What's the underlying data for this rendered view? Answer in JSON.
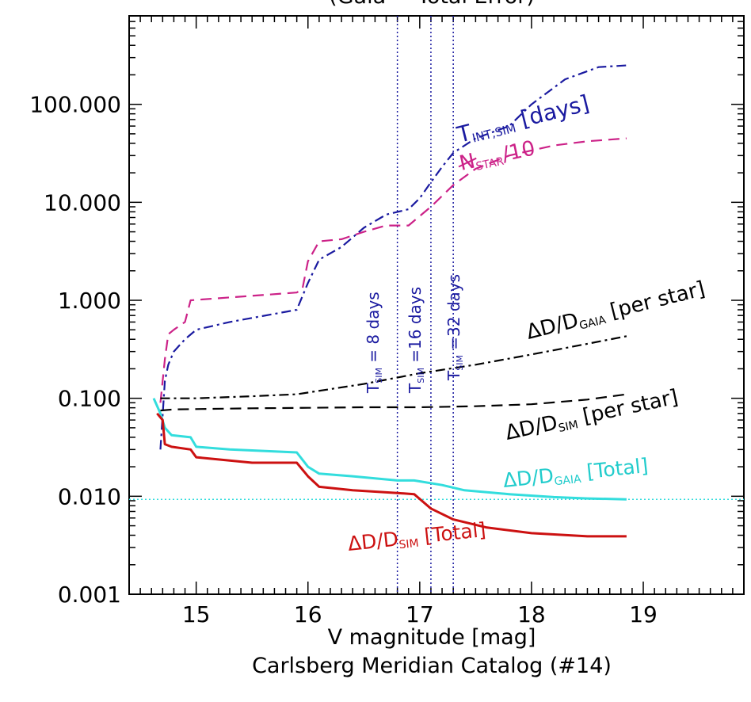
{
  "chart_data": {
    "type": "line",
    "title": "(Gaia = Total Error)",
    "xlabel": "V magnitude [mag]",
    "caption": "Carlsberg Meridian Catalog (#14)",
    "xlim": [
      14.4,
      19.9
    ],
    "ylim": [
      0.001,
      800
    ],
    "y_scale": "log",
    "x_ticks": [
      15,
      16,
      17,
      18,
      19
    ],
    "x_tick_labels": [
      "15",
      "16",
      "17",
      "18",
      "19"
    ],
    "y_ticks": [
      0.001,
      0.01,
      0.1,
      1,
      10,
      100
    ],
    "y_tick_labels": [
      "0.001",
      "0.010",
      "0.100",
      "1.000",
      "10.000",
      "100.000"
    ],
    "grid": false,
    "legend": "none (inline labels)",
    "series": [
      {
        "name": "T_INT,SIM [days]",
        "color": "#1a1aa0",
        "style": "dashdot",
        "x": [
          14.68,
          14.72,
          14.75,
          14.8,
          14.9,
          15.0,
          15.3,
          15.9,
          16.0,
          16.1,
          16.3,
          16.5,
          16.7,
          16.9,
          17.0,
          17.1,
          17.2,
          17.3,
          17.5,
          17.8,
          18.0,
          18.3,
          18.6,
          18.85
        ],
        "y": [
          0.03,
          0.15,
          0.22,
          0.3,
          0.4,
          0.5,
          0.6,
          0.8,
          1.5,
          2.6,
          3.5,
          5.5,
          7.5,
          8.5,
          11,
          16,
          23,
          32,
          45,
          60,
          100,
          180,
          240,
          250
        ]
      },
      {
        "name": "N_STAR/10",
        "color": "#cc2288",
        "style": "dashed",
        "x": [
          14.68,
          14.72,
          14.75,
          14.8,
          14.9,
          14.95,
          15.9,
          15.95,
          16.0,
          16.1,
          16.3,
          16.5,
          16.7,
          16.9,
          17.1,
          17.3,
          17.5,
          17.8,
          18.2,
          18.5,
          18.85
        ],
        "y": [
          0.09,
          0.25,
          0.45,
          0.5,
          0.6,
          1.0,
          1.2,
          1.3,
          2.5,
          4.0,
          4.2,
          5.0,
          5.8,
          5.8,
          9.0,
          15,
          22,
          30,
          38,
          42,
          45
        ]
      },
      {
        "name": "ΔD/D_GAIA [per star]",
        "color": "#000000",
        "style": "dashdot",
        "x": [
          14.68,
          15.0,
          15.5,
          15.9,
          16.5,
          17.0,
          17.5,
          18.0,
          18.5,
          18.85
        ],
        "y": [
          0.1,
          0.1,
          0.105,
          0.11,
          0.14,
          0.18,
          0.22,
          0.28,
          0.36,
          0.43
        ]
      },
      {
        "name": "ΔD/D_SIM [per star]",
        "color": "#000000",
        "style": "dashed",
        "x": [
          14.68,
          14.8,
          15.5,
          16.0,
          16.5,
          17.0,
          17.5,
          18.0,
          18.5,
          18.85
        ],
        "y": [
          0.075,
          0.077,
          0.079,
          0.08,
          0.081,
          0.081,
          0.083,
          0.087,
          0.097,
          0.11
        ]
      },
      {
        "name": "ΔD/D_GAIA [Total]",
        "color": "#33dddd",
        "style": "solid",
        "x": [
          14.62,
          14.68,
          14.72,
          14.78,
          14.95,
          15.0,
          15.3,
          15.9,
          16.0,
          16.1,
          16.4,
          16.8,
          16.95,
          17.2,
          17.4,
          17.8,
          18.2,
          18.5,
          18.85
        ],
        "y": [
          0.1,
          0.07,
          0.05,
          0.042,
          0.04,
          0.032,
          0.03,
          0.028,
          0.02,
          0.017,
          0.016,
          0.0145,
          0.0145,
          0.013,
          0.0115,
          0.0105,
          0.0098,
          0.0095,
          0.0093
        ]
      },
      {
        "name": "ΔD/D_SIM [Total]",
        "color": "#cc1111",
        "style": "solid",
        "x": [
          14.65,
          14.7,
          14.72,
          14.78,
          14.95,
          15.0,
          15.5,
          15.9,
          16.0,
          16.1,
          16.4,
          16.8,
          16.95,
          17.1,
          17.3,
          17.6,
          18.0,
          18.5,
          18.85
        ],
        "y": [
          0.07,
          0.06,
          0.034,
          0.032,
          0.03,
          0.025,
          0.022,
          0.022,
          0.016,
          0.0125,
          0.0115,
          0.0108,
          0.0105,
          0.0075,
          0.0058,
          0.0048,
          0.0042,
          0.0039,
          0.0039
        ]
      }
    ],
    "reference_lines": [
      {
        "orientation": "horizontal",
        "value": 0.0093,
        "color": "#33dddd",
        "style": "dotted"
      },
      {
        "orientation": "vertical",
        "value": 16.8,
        "color": "#1a1aa0",
        "style": "dotted"
      },
      {
        "orientation": "vertical",
        "value": 17.1,
        "color": "#1a1aa0",
        "style": "dotted"
      },
      {
        "orientation": "vertical",
        "value": 17.3,
        "color": "#1a1aa0",
        "style": "dotted"
      }
    ],
    "annotations": [
      {
        "id": "tint",
        "text_main": "T",
        "text_sub": "INT,SIM",
        "text_tail": " [days]",
        "color": "#1a1aa0"
      },
      {
        "id": "nstar",
        "text_main": "N",
        "text_sub": "STAR",
        "text_tail": "/10",
        "color": "#cc2288"
      },
      {
        "id": "dgaia_per",
        "text_main": "ΔD/D",
        "text_sub": "GAIA",
        "text_tail": " [per star]",
        "color": "#000000"
      },
      {
        "id": "dsim_per",
        "text_main": "ΔD/D",
        "text_sub": "SIM",
        "text_tail": " [per star]",
        "color": "#000000"
      },
      {
        "id": "dgaia_tot",
        "text_main": "ΔD/D",
        "text_sub": "GAIA",
        "text_tail": " [Total]",
        "color": "#22cccc"
      },
      {
        "id": "dsim_tot",
        "text_main": "ΔD/D",
        "text_sub": "SIM",
        "text_tail": " [Total]",
        "color": "#cc1111"
      },
      {
        "id": "tsim8",
        "text_main": "T",
        "text_sub": "SIM",
        "text_tail": " = 8 days",
        "color": "#1a1aa0"
      },
      {
        "id": "tsim16",
        "text_main": "T",
        "text_sub": "SIM",
        "text_tail": " =16 days",
        "color": "#1a1aa0"
      },
      {
        "id": "tsim32",
        "text_main": "T",
        "text_sub": "SIM",
        "text_tail": " =32 days",
        "color": "#1a1aa0"
      }
    ]
  }
}
